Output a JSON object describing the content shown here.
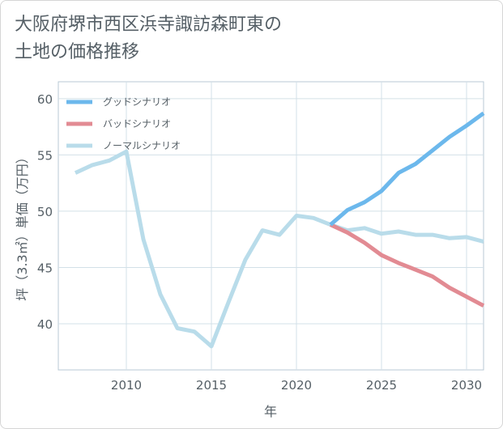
{
  "chart_data": {
    "type": "line",
    "title_lines": [
      "大阪府堺市西区浜寺諏訪森町東の",
      "土地の価格推移"
    ],
    "xlabel": "年",
    "ylabel": "坪（3.3㎡）単価（万円）",
    "xlim": [
      2006,
      2031
    ],
    "ylim": [
      35.9,
      61.5
    ],
    "xticks": [
      2010,
      2015,
      2020,
      2025,
      2030
    ],
    "yticks": [
      40,
      45,
      50,
      55,
      60
    ],
    "grid": true,
    "legend_position": "top-left",
    "series": [
      {
        "name": "グッドシナリオ",
        "color": "#6cb8ec",
        "x": [
          2022,
          2023,
          2024,
          2025,
          2026,
          2027,
          2028,
          2029,
          2030,
          2031
        ],
        "y": [
          48.8,
          50.1,
          50.8,
          51.8,
          53.4,
          54.2,
          55.4,
          56.6,
          57.6,
          58.7
        ]
      },
      {
        "name": "バッドシナリオ",
        "color": "#e28b93",
        "x": [
          2022,
          2023,
          2024,
          2025,
          2026,
          2027,
          2028,
          2029,
          2030,
          2031
        ],
        "y": [
          48.8,
          48.1,
          47.2,
          46.1,
          45.4,
          44.8,
          44.2,
          43.2,
          42.4,
          41.6
        ]
      },
      {
        "name": "ノーマルシナリオ",
        "color": "#b9dcea",
        "x": [
          2007,
          2008,
          2009,
          2010,
          2011,
          2012,
          2013,
          2014,
          2015,
          2016,
          2017,
          2018,
          2019,
          2020,
          2021,
          2022,
          2023,
          2024,
          2025,
          2026,
          2027,
          2028,
          2029,
          2030,
          2031
        ],
        "y": [
          53.4,
          54.1,
          54.5,
          55.3,
          47.5,
          42.6,
          39.6,
          39.3,
          38.0,
          41.9,
          45.7,
          48.3,
          47.9,
          49.6,
          49.4,
          48.8,
          48.3,
          48.5,
          48.0,
          48.2,
          47.9,
          47.9,
          47.6,
          47.7,
          47.3
        ]
      }
    ]
  }
}
